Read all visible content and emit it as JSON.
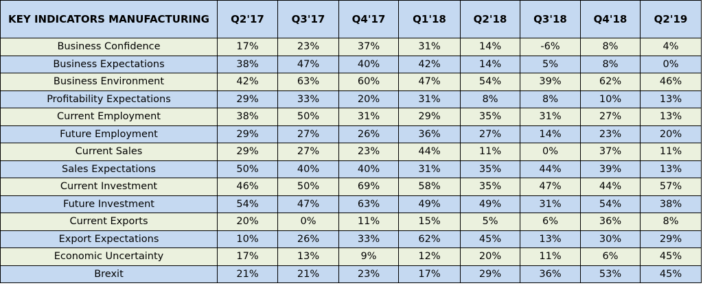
{
  "chart_data": {
    "type": "table",
    "title": "KEY INDICATORS MANUFACTURING",
    "columns": [
      "Q2'17",
      "Q3'17",
      "Q4'17",
      "Q1'18",
      "Q2'18",
      "Q3'18",
      "Q4'18",
      "Q2'19"
    ],
    "rows": [
      {
        "label": "Business Confidence",
        "values": [
          "17%",
          "23%",
          "37%",
          "31%",
          "14%",
          "-6%",
          "8%",
          "4%"
        ]
      },
      {
        "label": "Business Expectations",
        "values": [
          "38%",
          "47%",
          "40%",
          "42%",
          "14%",
          "5%",
          "8%",
          "0%"
        ]
      },
      {
        "label": "Business Environment",
        "values": [
          "42%",
          "63%",
          "60%",
          "47%",
          "54%",
          "39%",
          "62%",
          "46%"
        ]
      },
      {
        "label": "Profitability Expectations",
        "values": [
          "29%",
          "33%",
          "20%",
          "31%",
          "8%",
          "8%",
          "10%",
          "13%"
        ]
      },
      {
        "label": "Current Employment",
        "values": [
          "38%",
          "50%",
          "31%",
          "29%",
          "35%",
          "31%",
          "27%",
          "13%"
        ]
      },
      {
        "label": "Future Employment",
        "values": [
          "29%",
          "27%",
          "26%",
          "36%",
          "27%",
          "14%",
          "23%",
          "20%"
        ]
      },
      {
        "label": "Current Sales",
        "values": [
          "29%",
          "27%",
          "23%",
          "44%",
          "11%",
          "0%",
          "37%",
          "11%"
        ]
      },
      {
        "label": "Sales Expectations",
        "values": [
          "50%",
          "40%",
          "40%",
          "31%",
          "35%",
          "44%",
          "39%",
          "13%"
        ]
      },
      {
        "label": "Current Investment",
        "values": [
          "46%",
          "50%",
          "69%",
          "58%",
          "35%",
          "47%",
          "44%",
          "57%"
        ]
      },
      {
        "label": "Future Investment",
        "values": [
          "54%",
          "47%",
          "63%",
          "49%",
          "49%",
          "31%",
          "54%",
          "38%"
        ]
      },
      {
        "label": "Current Exports",
        "values": [
          "20%",
          "0%",
          "11%",
          "15%",
          "5%",
          "6%",
          "36%",
          "8%"
        ]
      },
      {
        "label": "Export Expectations",
        "values": [
          "10%",
          "26%",
          "33%",
          "62%",
          "45%",
          "13%",
          "30%",
          "29%"
        ]
      },
      {
        "label": "Economic Uncertainty",
        "values": [
          "17%",
          "13%",
          "9%",
          "12%",
          "20%",
          "11%",
          "6%",
          "45%"
        ]
      },
      {
        "label": "Brexit",
        "values": [
          "21%",
          "21%",
          "23%",
          "17%",
          "29%",
          "36%",
          "53%",
          "45%"
        ]
      }
    ],
    "row_colors": [
      "#ebf1de",
      "#c5d9f1"
    ],
    "header_color": "#c5d9f1"
  }
}
